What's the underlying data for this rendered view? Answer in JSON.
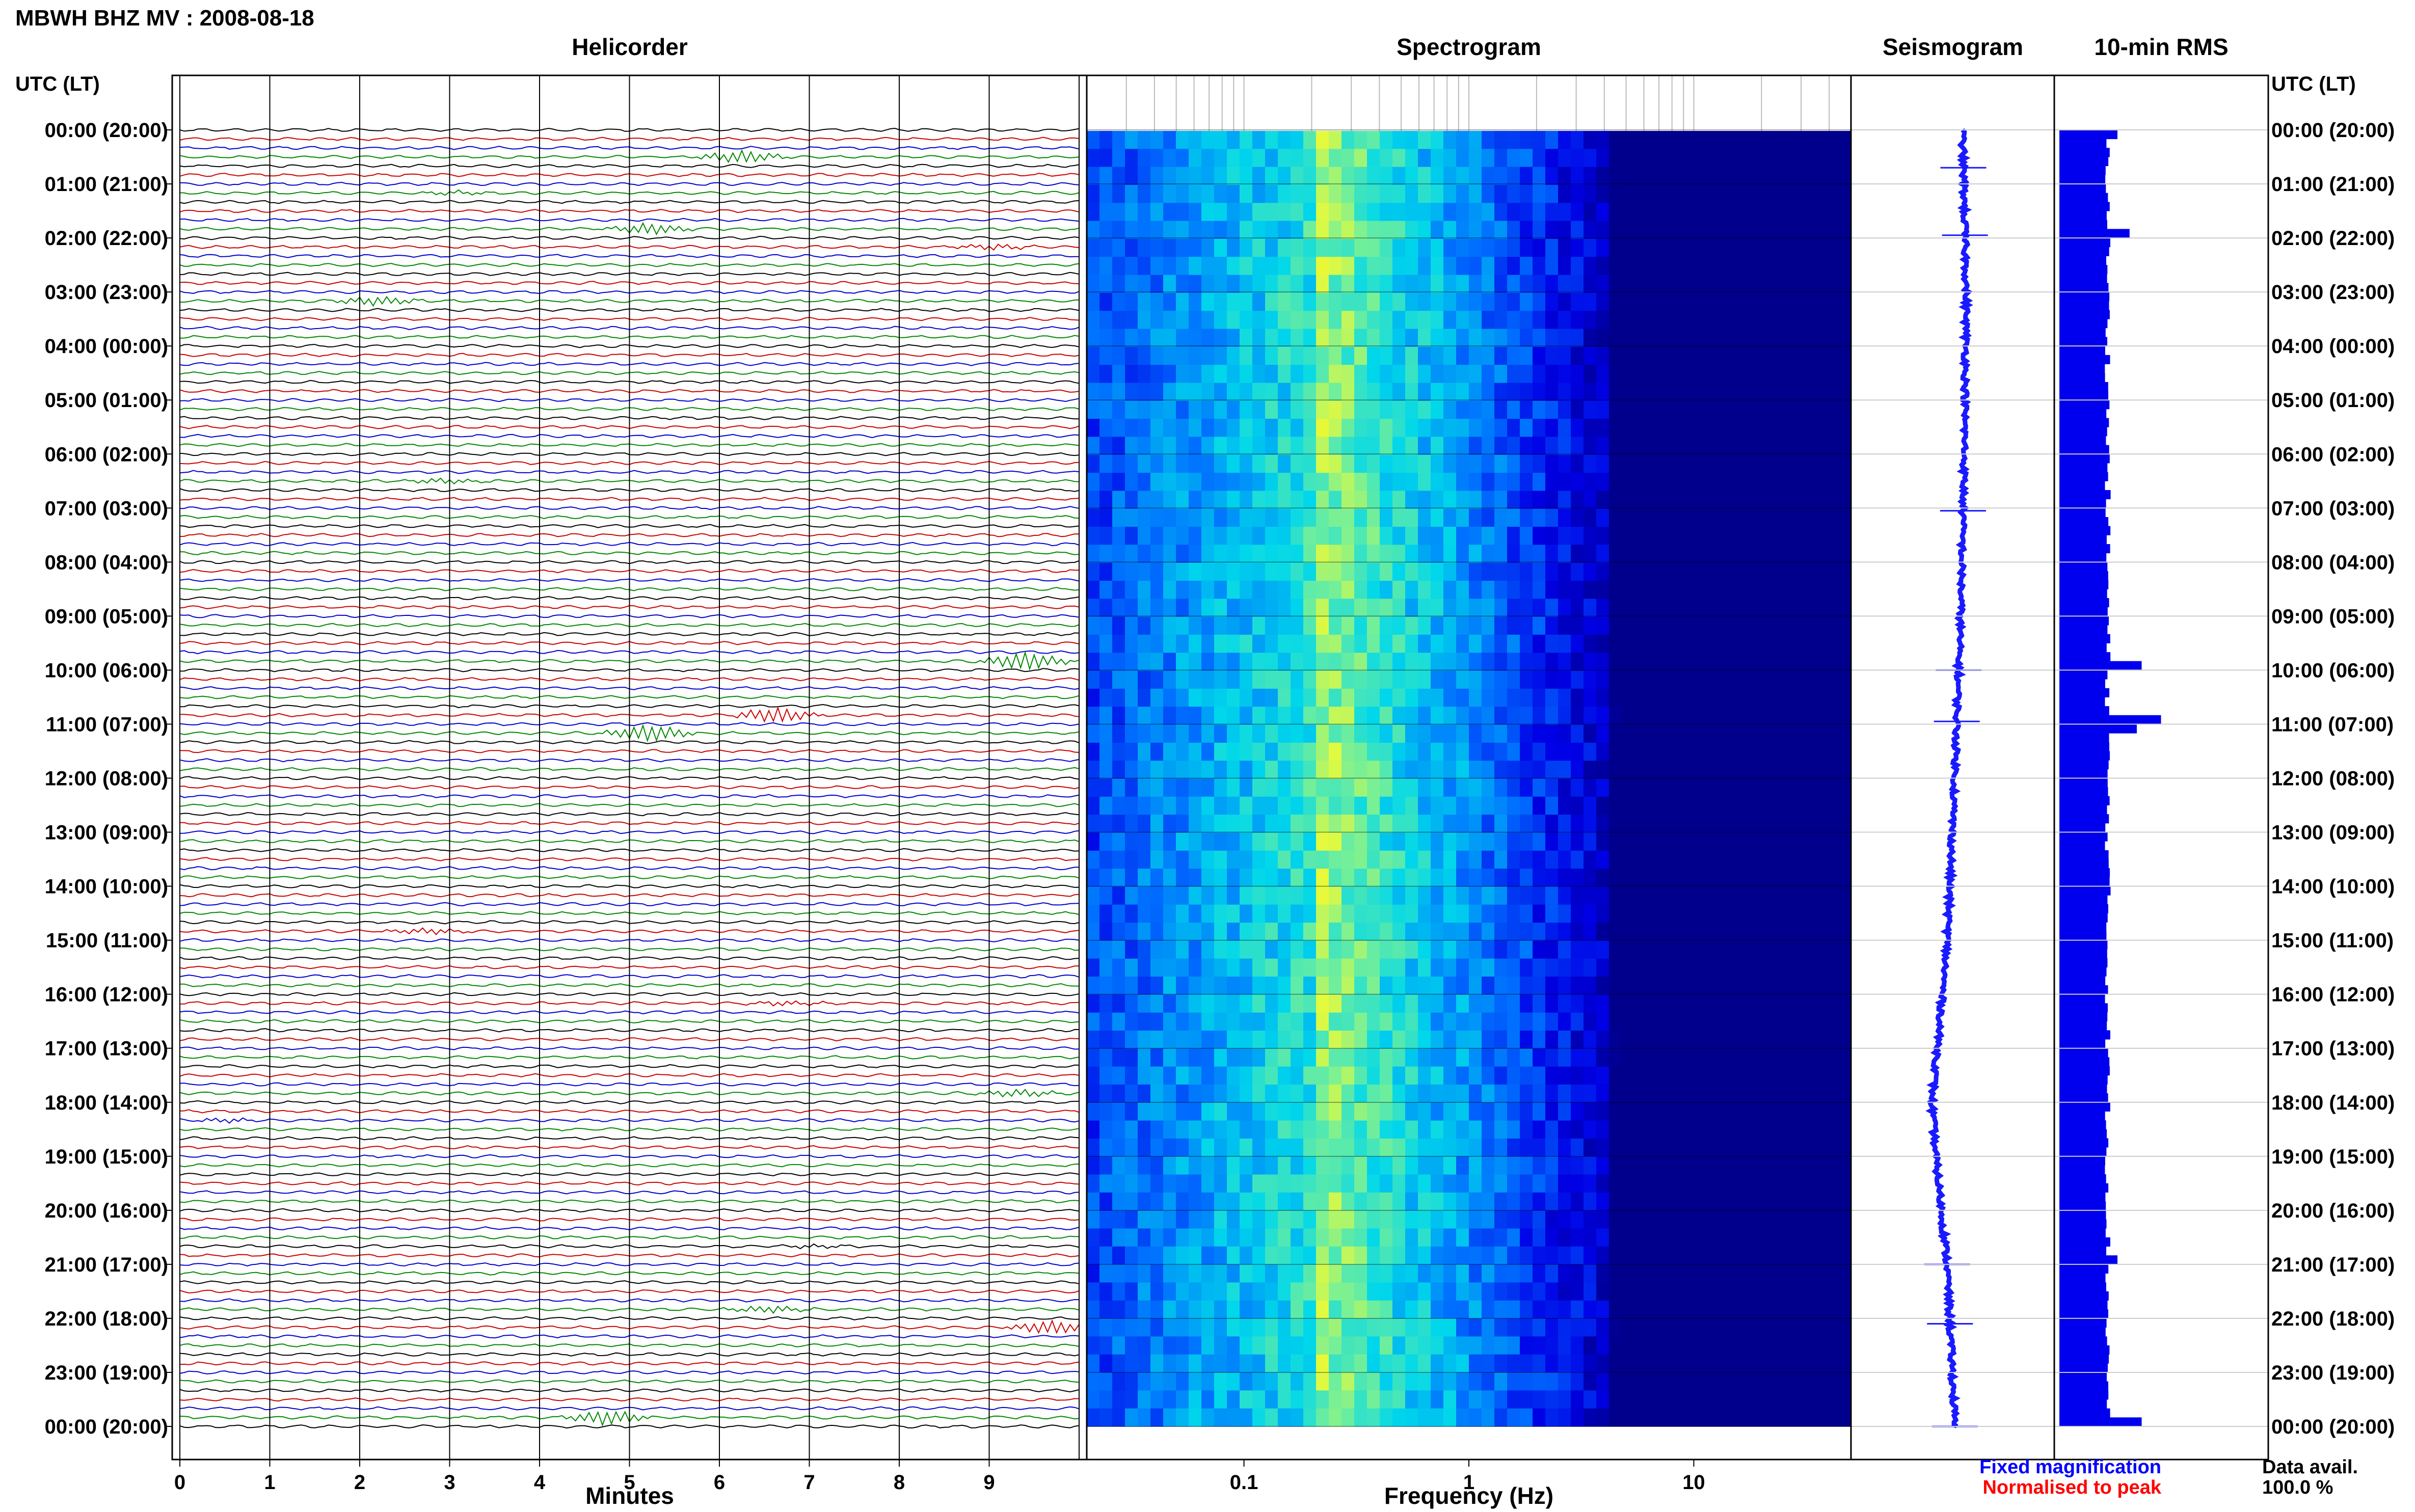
{
  "header": {
    "title": "MBWH BHZ MV : 2008-08-18",
    "utc_label": "UTC (LT)"
  },
  "panels": {
    "helicorder": "Helicorder",
    "spectrogram": "Spectrogram",
    "seismogram": "Seismogram",
    "rms": "10-min RMS"
  },
  "time_labels": [
    "00:00 (20:00)",
    "01:00 (21:00)",
    "02:00 (22:00)",
    "03:00 (23:00)",
    "04:00 (00:00)",
    "05:00 (01:00)",
    "06:00 (02:00)",
    "07:00 (03:00)",
    "08:00 (04:00)",
    "09:00 (05:00)",
    "10:00 (06:00)",
    "11:00 (07:00)",
    "12:00 (08:00)",
    "13:00 (09:00)",
    "14:00 (10:00)",
    "15:00 (11:00)",
    "16:00 (12:00)",
    "17:00 (13:00)",
    "18:00 (14:00)",
    "19:00 (15:00)",
    "20:00 (16:00)",
    "21:00 (17:00)",
    "22:00 (18:00)",
    "23:00 (19:00)",
    "00:00 (20:00)"
  ],
  "footer": {
    "minutes_label": "Minutes",
    "frequency_label": "Frequency (Hz)",
    "legend_fixed": "Fixed magnification",
    "legend_normalised": "Normalised to peak",
    "data_avail_label": "Data avail.",
    "data_avail_value": "100.0 %"
  },
  "colors": {
    "trace_cycle": [
      "#000000",
      "#cc0000",
      "#0000cc",
      "#008800"
    ],
    "seismogram": "#1a1aff",
    "rms": "#0000ee",
    "legend_fixed": "#0000ff",
    "legend_normalised": "#ff0000"
  },
  "chart_data": [
    {
      "type": "line",
      "name": "helicorder",
      "x_ticks": [
        "0",
        "1",
        "2",
        "3",
        "4",
        "5",
        "6",
        "7",
        "8",
        "9"
      ],
      "xlim": [
        0,
        10
      ],
      "rows_per_hour": 6,
      "row_minutes": 10,
      "events": [
        {
          "hour_row": 3,
          "minute": 6.3,
          "amp": 3.0
        },
        {
          "hour_row": 7,
          "minute": 3.2,
          "amp": 1.5
        },
        {
          "hour_row": 11,
          "minute": 5.2,
          "amp": 2.5
        },
        {
          "hour_row": 13,
          "minute": 9.0,
          "amp": 1.2
        },
        {
          "hour_row": 19,
          "minute": 2.2,
          "amp": 2.0
        },
        {
          "hour_row": 39,
          "minute": 3.0,
          "amp": 1.8
        },
        {
          "hour_row": 59,
          "minute": 9.4,
          "amp": 4.0
        },
        {
          "hour_row": 65,
          "minute": 6.7,
          "amp": 5.0
        },
        {
          "hour_row": 67,
          "minute": 5.2,
          "amp": 4.0
        },
        {
          "hour_row": 89,
          "minute": 2.8,
          "amp": 1.6
        },
        {
          "hour_row": 97,
          "minute": 6.8,
          "amp": 1.4
        },
        {
          "hour_row": 107,
          "minute": 9.3,
          "amp": 1.5
        },
        {
          "hour_row": 110,
          "minute": 0.4,
          "amp": 2.5
        },
        {
          "hour_row": 124,
          "minute": 7.3,
          "amp": 3.0
        },
        {
          "hour_row": 131,
          "minute": 6.6,
          "amp": 2.0
        },
        {
          "hour_row": 133,
          "minute": 9.7,
          "amp": 3.0
        },
        {
          "hour_row": 143,
          "minute": 4.7,
          "amp": 4.5
        }
      ]
    },
    {
      "type": "heatmap",
      "name": "spectrogram",
      "x_scale": "log",
      "xlim": [
        0.02,
        50
      ],
      "x_tick_labels": [
        {
          "value": 0.1,
          "label": "0.1"
        },
        {
          "value": 1,
          "label": "1"
        },
        {
          "value": 10,
          "label": "10"
        }
      ],
      "peak_frequency_hz": 0.22
    },
    {
      "type": "line",
      "name": "seismogram",
      "y_hours": [
        0,
        3,
        6,
        9,
        12,
        15,
        17,
        18,
        19,
        21,
        24
      ],
      "offset": [
        0.25,
        0.35,
        0.3,
        0.2,
        0.05,
        -0.15,
        -0.4,
        -0.55,
        -0.45,
        -0.15,
        0.05
      ],
      "spikes_hours": [
        0.7,
        1.95,
        7.05,
        10.0,
        10.95,
        21.0,
        22.1,
        24.0
      ]
    },
    {
      "type": "bar",
      "name": "10-min RMS",
      "orientation": "horizontal",
      "base_level": 1.0,
      "peaks": [
        {
          "hour": 0.0,
          "value": 1.2
        },
        {
          "hour": 1.9,
          "value": 1.45
        },
        {
          "hour": 9.9,
          "value": 1.7
        },
        {
          "hour": 10.95,
          "value": 2.1
        },
        {
          "hour": 11.1,
          "value": 1.6
        },
        {
          "hour": 20.9,
          "value": 1.2
        },
        {
          "hour": 23.9,
          "value": 1.7
        }
      ]
    }
  ]
}
